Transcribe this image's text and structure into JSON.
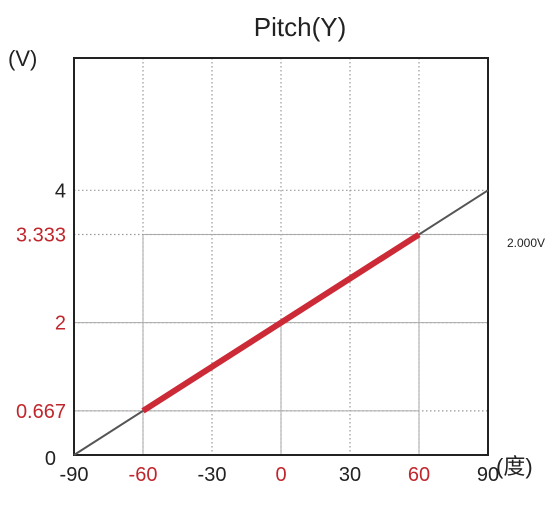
{
  "chart_data": {
    "type": "line",
    "title": "Pitch(Y)",
    "ylabel": "(V)",
    "xlabel": "(度)",
    "xlim": [
      -90,
      90
    ],
    "ylim": [
      0,
      6
    ],
    "x_ticks": [
      {
        "value": -90,
        "label": "-90",
        "highlight": false
      },
      {
        "value": -60,
        "label": "-60",
        "highlight": true
      },
      {
        "value": -30,
        "label": "-30",
        "highlight": false
      },
      {
        "value": 0,
        "label": "0",
        "highlight": true
      },
      {
        "value": 30,
        "label": "30",
        "highlight": false
      },
      {
        "value": 60,
        "label": "60",
        "highlight": true
      },
      {
        "value": 90,
        "label": "90",
        "highlight": false
      }
    ],
    "y_ticks": [
      {
        "value": 0,
        "label": "0",
        "highlight": false
      },
      {
        "value": 0.667,
        "label": "0.667",
        "highlight": true
      },
      {
        "value": 2,
        "label": "2",
        "highlight": true
      },
      {
        "value": 3.333,
        "label": "3.333",
        "highlight": true
      },
      {
        "value": 4,
        "label": "4",
        "highlight": false
      }
    ],
    "series": [
      {
        "x": [
          -90,
          90
        ],
        "y": [
          0,
          4
        ],
        "color": "#555555",
        "role": "full-range"
      },
      {
        "x": [
          -60,
          60
        ],
        "y": [
          0.667,
          3.333
        ],
        "color": "#cc2a36",
        "role": "active-range"
      }
    ],
    "annotations": [
      {
        "text": "2.000V",
        "note": "cut off at right edge"
      }
    ],
    "grid": true,
    "colors": {
      "highlight_label": "#c0272d",
      "axis_label": "#222222",
      "grid": "#999999"
    }
  }
}
